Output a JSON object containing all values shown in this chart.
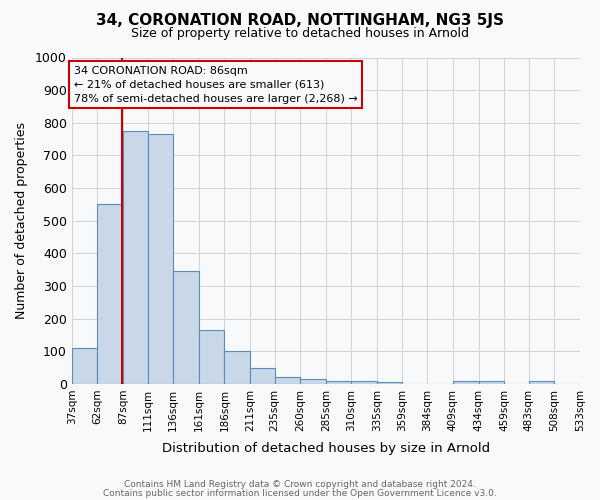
{
  "title": "34, CORONATION ROAD, NOTTINGHAM, NG3 5JS",
  "subtitle": "Size of property relative to detached houses in Arnold",
  "xlabel": "Distribution of detached houses by size in Arnold",
  "ylabel": "Number of detached properties",
  "property_size": 86,
  "annotation_line1": "34 CORONATION ROAD: 86sqm",
  "annotation_line2": "← 21% of detached houses are smaller (613)",
  "annotation_line3": "78% of semi-detached houses are larger (2,268) →",
  "bins": [
    37,
    62,
    87,
    111,
    136,
    161,
    186,
    211,
    235,
    260,
    285,
    310,
    335,
    359,
    384,
    409,
    434,
    459,
    483,
    508,
    533
  ],
  "bin_labels": [
    "37sqm",
    "62sqm",
    "87sqm",
    "111sqm",
    "136sqm",
    "161sqm",
    "186sqm",
    "211sqm",
    "235sqm",
    "260sqm",
    "285sqm",
    "310sqm",
    "335sqm",
    "359sqm",
    "384sqm",
    "409sqm",
    "434sqm",
    "459sqm",
    "483sqm",
    "508sqm",
    "533sqm"
  ],
  "bar_heights": [
    110,
    550,
    775,
    765,
    345,
    165,
    100,
    50,
    20,
    15,
    10,
    8,
    5,
    0,
    0,
    8,
    10,
    0,
    10,
    0
  ],
  "bar_color": "#c8d8e8",
  "bar_edge_color": "#5b8db8",
  "grid_color": "#cccccc",
  "red_line_color": "#cc0000",
  "annotation_box_color": "#cc0000",
  "ylim": [
    0,
    1000
  ],
  "background_color": "#f8f9fa",
  "footer1": "Contains HM Land Registry data © Crown copyright and database right 2024.",
  "footer2": "Contains public sector information licensed under the Open Government Licence v3.0."
}
